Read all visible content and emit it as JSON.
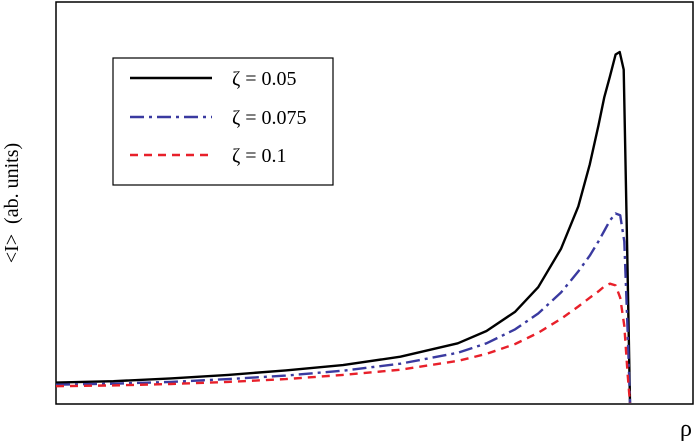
{
  "chart_data": {
    "type": "line",
    "xlabel": "ρ",
    "ylabel": "<I>  (ab. units)",
    "xlim": [
      0,
      1
    ],
    "ylim": [
      0,
      1
    ],
    "x_ticks_shown": false,
    "y_ticks_shown": false,
    "grid": false,
    "legend_position": "top-left",
    "series": [
      {
        "name": "ζ = 0.05",
        "color": "#000000",
        "style": "solid",
        "x": [
          0.0,
          0.1,
          0.2,
          0.3,
          0.4,
          0.5,
          0.6,
          0.7,
          0.75,
          0.8,
          0.84,
          0.88,
          0.91,
          0.93,
          0.945,
          0.955,
          0.965,
          0.975,
          0.982,
          0.989,
          0.995,
          1.0
        ],
        "y": [
          0.058,
          0.062,
          0.07,
          0.08,
          0.093,
          0.108,
          0.132,
          0.17,
          0.205,
          0.26,
          0.33,
          0.44,
          0.56,
          0.68,
          0.79,
          0.87,
          0.93,
          0.993,
          1.0,
          0.95,
          0.45,
          0.0
        ]
      },
      {
        "name": "ζ = 0.075",
        "color": "#3a3aa0",
        "style": "dashdot",
        "x": [
          0.0,
          0.1,
          0.2,
          0.3,
          0.4,
          0.5,
          0.6,
          0.7,
          0.75,
          0.8,
          0.84,
          0.88,
          0.91,
          0.93,
          0.945,
          0.955,
          0.965,
          0.975,
          0.983,
          0.99,
          0.996,
          1.0
        ],
        "y": [
          0.052,
          0.055,
          0.06,
          0.068,
          0.078,
          0.092,
          0.112,
          0.143,
          0.17,
          0.21,
          0.255,
          0.315,
          0.375,
          0.42,
          0.46,
          0.49,
          0.52,
          0.54,
          0.535,
          0.46,
          0.2,
          0.0
        ]
      },
      {
        "name": "ζ = 0.1",
        "color": "#e8202a",
        "style": "dashed",
        "x": [
          0.0,
          0.1,
          0.2,
          0.3,
          0.4,
          0.5,
          0.6,
          0.7,
          0.75,
          0.8,
          0.84,
          0.88,
          0.91,
          0.93,
          0.945,
          0.955,
          0.965,
          0.975,
          0.983,
          0.99,
          0.996,
          1.0
        ],
        "y": [
          0.048,
          0.05,
          0.054,
          0.06,
          0.068,
          0.08,
          0.095,
          0.12,
          0.14,
          0.168,
          0.2,
          0.24,
          0.275,
          0.3,
          0.318,
          0.332,
          0.34,
          0.335,
          0.3,
          0.22,
          0.08,
          0.0
        ]
      }
    ]
  }
}
